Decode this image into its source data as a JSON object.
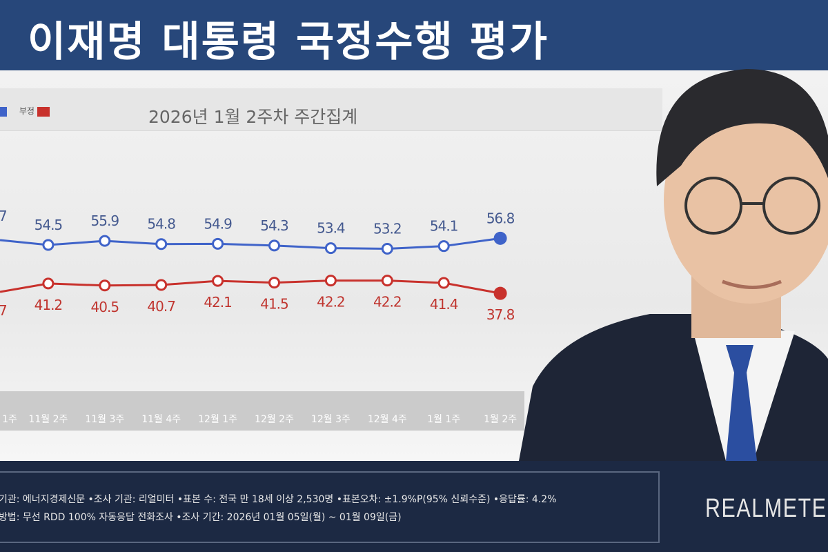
{
  "title": "이재명 대통령 국정수행 평가",
  "chart_data": {
    "type": "line",
    "title": "2026년 1월 2주차 주간집계",
    "categories": [
      "1주",
      "11월 2주",
      "11월 3주",
      "11월 4주",
      "12월 1주",
      "12월 2주",
      "12월 3주",
      "12월 4주",
      "1월 1주",
      "1월 2주"
    ],
    "series": [
      {
        "name": "",
        "color": "#3f63c9",
        "values": [
          null,
          54.5,
          55.9,
          54.8,
          54.9,
          54.3,
          53.4,
          53.2,
          54.1,
          56.8
        ],
        "labels": [
          "7",
          "54.5",
          "55.9",
          "54.8",
          "54.9",
          "54.3",
          "53.4",
          "53.2",
          "54.1",
          "56.8"
        ]
      },
      {
        "name": "부정",
        "color": "#c8312c",
        "values": [
          null,
          41.2,
          40.5,
          40.7,
          42.1,
          41.5,
          42.2,
          42.2,
          41.4,
          37.8
        ],
        "labels": [
          "7",
          "41.2",
          "40.5",
          "40.7",
          "42.1",
          "41.5",
          "42.2",
          "42.2",
          "41.4",
          "37.8"
        ]
      }
    ],
    "legend_placement": "top-left",
    "grid": false
  },
  "footer": {
    "line1": "기관: 에너지경제신문 •조사 기관: 리얼미터 •표본 수: 전국 만 18세 이상 2,530명 •표본오차: ±1.9%P(95% 신뢰수준) •응답률: 4.2%",
    "line2": "방법: 무선 RDD 100% 자동응답 전화조사 •조사 기간: 2026년 01월 05일(월) ~ 01월 09일(금)"
  },
  "logo": "REALMETER"
}
